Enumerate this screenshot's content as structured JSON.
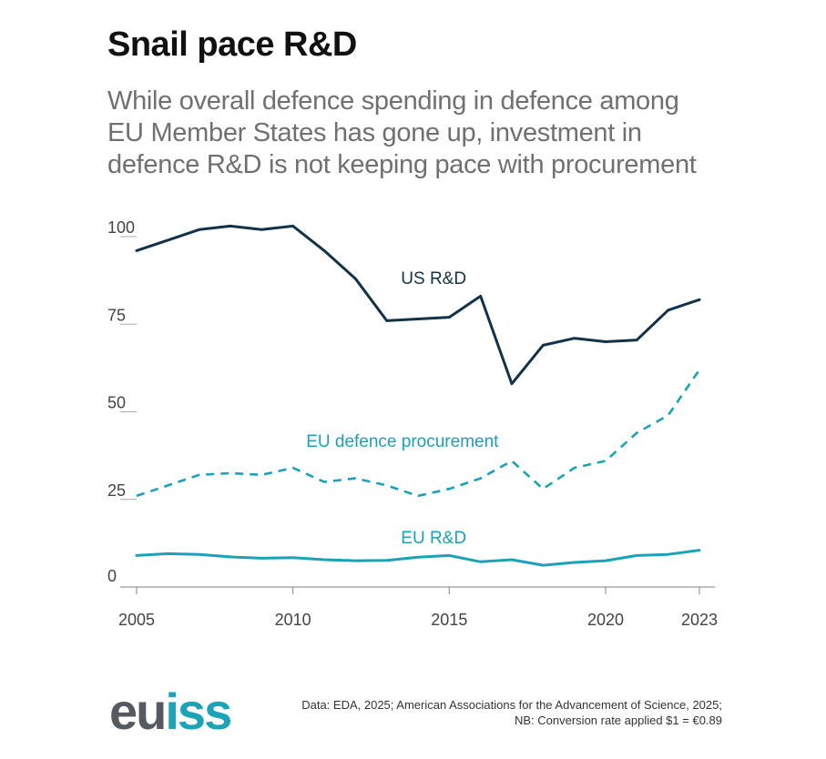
{
  "title": "Snail pace R&D",
  "subtitle": "While overall defence spending in defence among EU Member States has gone up, investment in defence R&D is not keeping pace with procurement",
  "source": {
    "line1": "Data: EDA, 2025; American Associations for the Advancement of Science, 2025;",
    "line2": "NB: Conversion rate applied $1 = €0.89"
  },
  "logo": {
    "part1": "eu",
    "part2": "iss"
  },
  "colors": {
    "us": "#12324a",
    "eu": "#19a2b8",
    "axis": "#999999"
  },
  "chart_data": {
    "type": "line",
    "title": "Snail pace R&D",
    "xlabel": "",
    "ylabel": "",
    "xlim": [
      2005,
      2023
    ],
    "ylim": [
      0,
      100
    ],
    "x_ticks": [
      2005,
      2010,
      2015,
      2020,
      2023
    ],
    "y_ticks": [
      0,
      25,
      50,
      75,
      100
    ],
    "x": [
      2005,
      2006,
      2007,
      2008,
      2009,
      2010,
      2011,
      2012,
      2013,
      2014,
      2015,
      2016,
      2017,
      2018,
      2019,
      2020,
      2021,
      2022,
      2023
    ],
    "series": [
      {
        "name": "US R&D",
        "style": "solid",
        "values": [
          96,
          99,
          102,
          103,
          102,
          103,
          96,
          88,
          76,
          76.5,
          77,
          83,
          58,
          69,
          71,
          70,
          70.5,
          79,
          82
        ]
      },
      {
        "name": "EU defence procurement",
        "style": "dashed",
        "values": [
          26,
          29,
          32,
          32.5,
          32,
          34,
          30,
          31,
          29,
          26,
          28,
          31,
          36,
          28,
          34,
          36,
          44,
          49,
          62
        ]
      },
      {
        "name": "EU R&D",
        "style": "solid",
        "values": [
          9,
          9.5,
          9.3,
          8.6,
          8.2,
          8.4,
          7.8,
          7.5,
          7.6,
          8.5,
          9,
          7.2,
          7.8,
          6.2,
          7,
          7.5,
          9,
          9.3,
          10.5
        ]
      }
    ]
  }
}
